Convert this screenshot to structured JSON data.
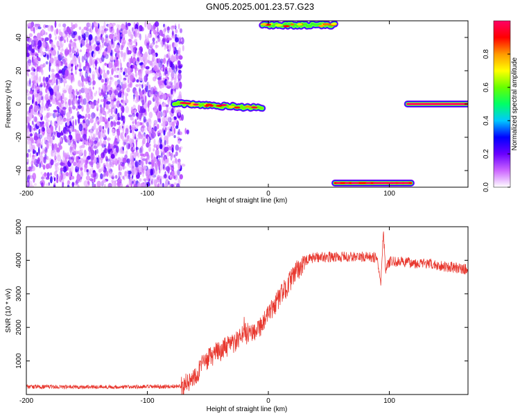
{
  "title": "GN05.2025.001.23.57.G23",
  "chart_data": [
    {
      "type": "heatmap",
      "xlabel": "Height of straight line (km)",
      "ylabel": "Frequency (Hz)",
      "xlim": [
        -200,
        165
      ],
      "ylim": [
        -50,
        50
      ],
      "xticks": [
        -200,
        -100,
        0,
        100
      ],
      "yticks": [
        -40,
        -20,
        0,
        20,
        40
      ],
      "colorbar": {
        "label": "Normalized spectral amplitude",
        "range": [
          0,
          1
        ],
        "ticks": [
          "0.0",
          "0.2",
          "0.4",
          "0.6",
          "0.8"
        ],
        "colormap": [
          "#ffffff",
          "#cc66ff",
          "#6a00ff",
          "#0000ff",
          "#00c8ff",
          "#00ff66",
          "#66ff00",
          "#ffff00",
          "#ff9900",
          "#ff0000",
          "#ff0066"
        ]
      },
      "features": [
        {
          "kind": "noise",
          "x": [
            -200,
            -72
          ],
          "y": [
            -50,
            48
          ],
          "amplitude": [
            0.05,
            0.25
          ]
        },
        {
          "kind": "band",
          "x": [
            -78,
            -5
          ],
          "y_center": [
            0.5,
            -2.5
          ],
          "amplitude": 0.6
        },
        {
          "kind": "band",
          "x": [
            115,
            165
          ],
          "y_center": 0.0,
          "amplitude": 1.0
        },
        {
          "kind": "band",
          "x": [
            -5,
            55
          ],
          "y_center": 47.5,
          "amplitude": 0.55
        },
        {
          "kind": "band",
          "x": [
            55,
            118
          ],
          "y_center": -47.5,
          "amplitude": 0.9
        }
      ]
    },
    {
      "type": "line",
      "xlabel": "Height of straight line (km)",
      "ylabel": "SNR (10 * v/v)",
      "xlim": [
        -200,
        165
      ],
      "ylim": [
        0,
        5000
      ],
      "xticks": [
        -200,
        -100,
        0,
        100
      ],
      "yticks": [
        1000,
        2000,
        3000,
        4000,
        5000
      ],
      "color": "#e8382f",
      "series": [
        {
          "x": [
            -200,
            -180,
            -160,
            -140,
            -120,
            -100,
            -80,
            -70,
            -65,
            -60,
            -55,
            -50,
            -45,
            -40,
            -35,
            -30,
            -25,
            -22,
            -20,
            -18,
            -15,
            -10,
            -5,
            0,
            5,
            10,
            15,
            20,
            25,
            30,
            35,
            40,
            50,
            60,
            70,
            80,
            90,
            93,
            95,
            97,
            100,
            110,
            120,
            130,
            140,
            150,
            160,
            165
          ],
          "y": [
            230,
            230,
            225,
            230,
            225,
            230,
            240,
            260,
            380,
            600,
            850,
            1050,
            1200,
            1300,
            1400,
            1500,
            1600,
            1700,
            2000,
            1800,
            1850,
            1950,
            2100,
            2350,
            2650,
            2950,
            3200,
            3500,
            3750,
            3950,
            4050,
            4100,
            4100,
            4100,
            4100,
            4100,
            4080,
            3300,
            4900,
            3700,
            3950,
            3950,
            3920,
            3900,
            3850,
            3800,
            3750,
            3720
          ]
        }
      ]
    }
  ]
}
